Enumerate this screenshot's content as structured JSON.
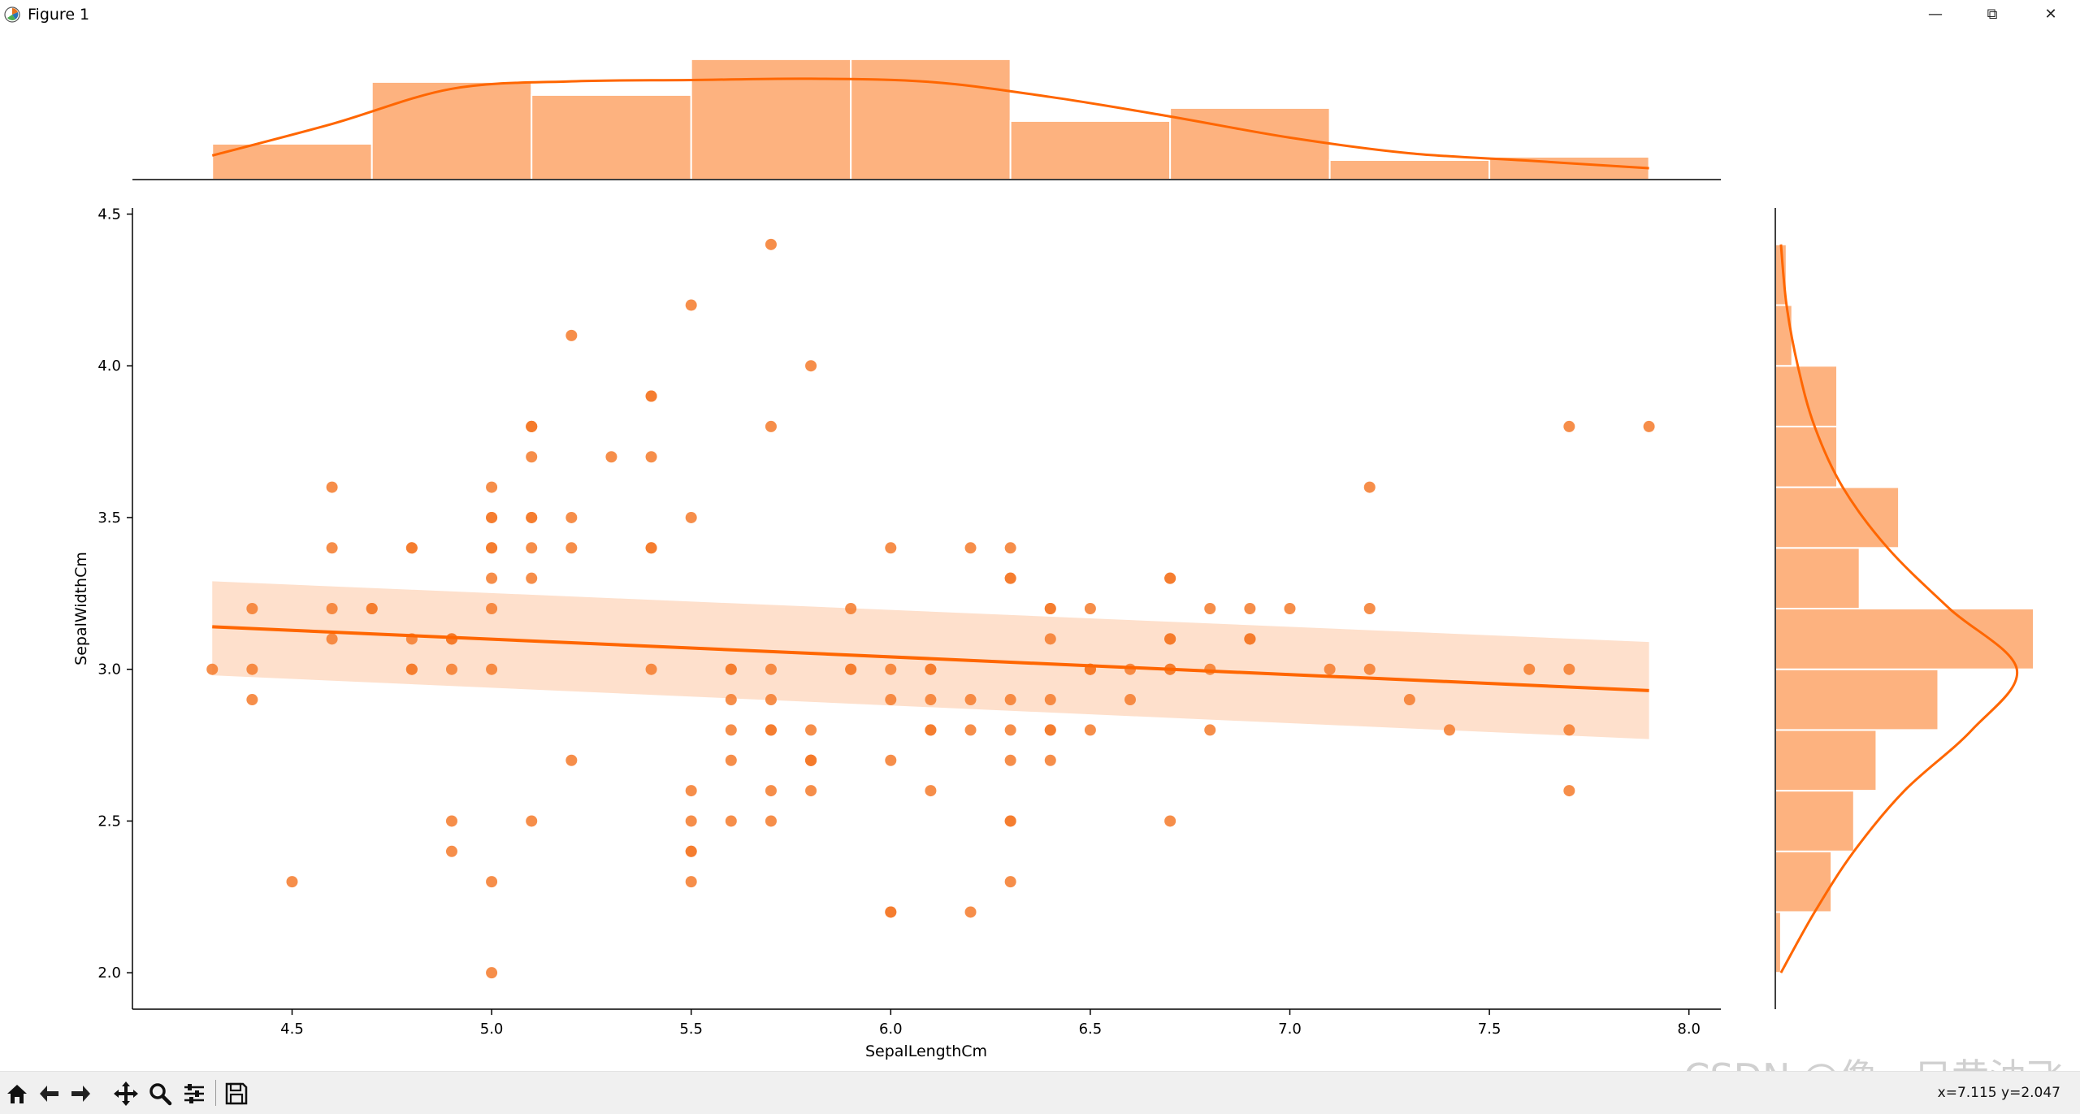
{
  "window": {
    "title": "Figure 1",
    "minimize_glyph": "—",
    "restore_glyph": "⧉",
    "close_glyph": "✕"
  },
  "toolbar": {
    "buttons": [
      {
        "name": "home-icon"
      },
      {
        "name": "back-icon"
      },
      {
        "name": "forward-icon"
      },
      {
        "name": "pan-icon"
      },
      {
        "name": "zoom-icon"
      },
      {
        "name": "configure-subplots-icon"
      },
      {
        "name": "save-icon"
      }
    ],
    "coords_text": "x=7.115  y=2.047"
  },
  "watermark": "CSDN @像一只黄油飞",
  "colors": {
    "accent": "#ff6600",
    "bar_fill": "#fdb27f",
    "ci_band": "#fee0cc",
    "point": "#f57a2a",
    "axis": "#000000"
  },
  "chart_data": {
    "type": "scatter",
    "title": "",
    "xlabel": "SepalLengthCm",
    "ylabel": "SepalWidthCm",
    "xlim": [
      4.1,
      8.08
    ],
    "ylim": [
      1.88,
      4.52
    ],
    "xticks": [
      4.5,
      5.0,
      5.5,
      6.0,
      6.5,
      7.0,
      7.5,
      8.0
    ],
    "xtick_labels": [
      "4.5",
      "5.0",
      "5.5",
      "6.0",
      "6.5",
      "7.0",
      "7.5",
      "8.0"
    ],
    "yticks": [
      2.0,
      2.5,
      3.0,
      3.5,
      4.0,
      4.5
    ],
    "ytick_labels": [
      "2.0",
      "2.5",
      "3.0",
      "3.5",
      "4.0",
      "4.5"
    ],
    "grid": false,
    "points": [
      [
        5.1,
        3.5
      ],
      [
        4.9,
        3.0
      ],
      [
        4.7,
        3.2
      ],
      [
        4.6,
        3.1
      ],
      [
        5.0,
        3.6
      ],
      [
        5.4,
        3.9
      ],
      [
        4.6,
        3.4
      ],
      [
        5.0,
        3.4
      ],
      [
        4.4,
        2.9
      ],
      [
        4.9,
        3.1
      ],
      [
        5.4,
        3.7
      ],
      [
        4.8,
        3.4
      ],
      [
        4.8,
        3.0
      ],
      [
        4.3,
        3.0
      ],
      [
        5.8,
        4.0
      ],
      [
        5.7,
        4.4
      ],
      [
        5.4,
        3.9
      ],
      [
        5.1,
        3.5
      ],
      [
        5.7,
        3.8
      ],
      [
        5.1,
        3.8
      ],
      [
        5.4,
        3.4
      ],
      [
        5.1,
        3.7
      ],
      [
        4.6,
        3.6
      ],
      [
        5.1,
        3.3
      ],
      [
        4.8,
        3.4
      ],
      [
        5.0,
        3.0
      ],
      [
        5.0,
        3.4
      ],
      [
        5.2,
        3.5
      ],
      [
        5.2,
        3.4
      ],
      [
        4.7,
        3.2
      ],
      [
        4.8,
        3.1
      ],
      [
        5.4,
        3.4
      ],
      [
        5.2,
        4.1
      ],
      [
        5.5,
        4.2
      ],
      [
        4.9,
        3.1
      ],
      [
        5.0,
        3.2
      ],
      [
        5.5,
        3.5
      ],
      [
        4.9,
        3.1
      ],
      [
        4.4,
        3.0
      ],
      [
        5.1,
        3.4
      ],
      [
        5.0,
        3.5
      ],
      [
        4.5,
        2.3
      ],
      [
        4.4,
        3.2
      ],
      [
        5.0,
        3.5
      ],
      [
        5.1,
        3.8
      ],
      [
        4.8,
        3.0
      ],
      [
        5.1,
        3.8
      ],
      [
        4.6,
        3.2
      ],
      [
        5.3,
        3.7
      ],
      [
        5.0,
        3.3
      ],
      [
        7.0,
        3.2
      ],
      [
        6.4,
        3.2
      ],
      [
        6.9,
        3.1
      ],
      [
        5.5,
        2.3
      ],
      [
        6.5,
        2.8
      ],
      [
        5.7,
        2.8
      ],
      [
        6.3,
        3.3
      ],
      [
        4.9,
        2.4
      ],
      [
        6.6,
        2.9
      ],
      [
        5.2,
        2.7
      ],
      [
        5.0,
        2.0
      ],
      [
        5.9,
        3.0
      ],
      [
        6.0,
        2.2
      ],
      [
        6.1,
        2.9
      ],
      [
        5.6,
        2.9
      ],
      [
        6.7,
        3.1
      ],
      [
        5.6,
        3.0
      ],
      [
        5.8,
        2.7
      ],
      [
        6.2,
        2.2
      ],
      [
        5.6,
        2.5
      ],
      [
        5.9,
        3.2
      ],
      [
        6.1,
        2.8
      ],
      [
        6.3,
        2.5
      ],
      [
        6.1,
        2.8
      ],
      [
        6.4,
        2.9
      ],
      [
        6.6,
        3.0
      ],
      [
        6.8,
        2.8
      ],
      [
        6.7,
        3.0
      ],
      [
        6.0,
        2.9
      ],
      [
        5.7,
        2.6
      ],
      [
        5.5,
        2.4
      ],
      [
        5.5,
        2.4
      ],
      [
        5.8,
        2.7
      ],
      [
        6.0,
        2.7
      ],
      [
        5.4,
        3.0
      ],
      [
        6.0,
        3.4
      ],
      [
        6.7,
        3.1
      ],
      [
        6.3,
        2.3
      ],
      [
        5.6,
        3.0
      ],
      [
        5.5,
        2.5
      ],
      [
        5.5,
        2.6
      ],
      [
        6.1,
        3.0
      ],
      [
        5.8,
        2.6
      ],
      [
        5.0,
        2.3
      ],
      [
        5.6,
        2.7
      ],
      [
        5.7,
        3.0
      ],
      [
        5.7,
        2.9
      ],
      [
        6.2,
        2.9
      ],
      [
        5.1,
        2.5
      ],
      [
        5.7,
        2.8
      ],
      [
        6.3,
        3.3
      ],
      [
        5.8,
        2.7
      ],
      [
        7.1,
        3.0
      ],
      [
        6.3,
        2.9
      ],
      [
        6.5,
        3.0
      ],
      [
        7.6,
        3.0
      ],
      [
        4.9,
        2.5
      ],
      [
        7.3,
        2.9
      ],
      [
        6.7,
        2.5
      ],
      [
        7.2,
        3.6
      ],
      [
        6.5,
        3.2
      ],
      [
        6.4,
        2.7
      ],
      [
        6.8,
        3.0
      ],
      [
        5.7,
        2.5
      ],
      [
        5.8,
        2.8
      ],
      [
        6.4,
        3.2
      ],
      [
        6.5,
        3.0
      ],
      [
        7.7,
        3.8
      ],
      [
        7.7,
        2.6
      ],
      [
        6.0,
        2.2
      ],
      [
        6.9,
        3.2
      ],
      [
        5.6,
        2.8
      ],
      [
        7.7,
        2.8
      ],
      [
        6.3,
        2.7
      ],
      [
        6.7,
        3.3
      ],
      [
        7.2,
        3.2
      ],
      [
        6.2,
        2.8
      ],
      [
        6.1,
        3.0
      ],
      [
        6.4,
        2.8
      ],
      [
        7.2,
        3.0
      ],
      [
        7.4,
        2.8
      ],
      [
        7.9,
        3.8
      ],
      [
        6.4,
        2.8
      ],
      [
        6.3,
        2.8
      ],
      [
        6.1,
        2.6
      ],
      [
        7.7,
        3.0
      ],
      [
        6.3,
        3.4
      ],
      [
        6.4,
        3.1
      ],
      [
        6.0,
        3.0
      ],
      [
        6.9,
        3.1
      ],
      [
        6.7,
        3.1
      ],
      [
        6.9,
        3.1
      ],
      [
        5.8,
        2.7
      ],
      [
        6.8,
        3.2
      ],
      [
        6.7,
        3.3
      ],
      [
        6.7,
        3.0
      ],
      [
        6.3,
        2.5
      ],
      [
        6.5,
        3.0
      ],
      [
        6.2,
        3.4
      ],
      [
        5.9,
        3.0
      ]
    ],
    "regression": {
      "x": [
        4.3,
        7.9
      ],
      "y": [
        3.14,
        2.93
      ],
      "ci_upper": [
        3.29,
        3.09
      ],
      "ci_lower": [
        2.98,
        2.77
      ]
    },
    "top_hist": {
      "bin_edges": [
        4.3,
        4.7,
        5.1,
        5.5,
        5.9,
        6.3,
        6.7,
        7.1,
        7.5,
        7.9
      ],
      "counts": [
        11,
        30,
        26,
        37,
        37,
        18,
        22,
        6,
        7
      ],
      "kde_x": [
        4.3,
        4.6,
        4.9,
        5.2,
        5.5,
        5.8,
        6.1,
        6.4,
        6.7,
        7.0,
        7.3,
        7.6,
        7.9
      ],
      "kde_y": [
        7.4,
        17.1,
        27.9,
        30.2,
        30.6,
        31.0,
        30.0,
        25.4,
        19.4,
        12.9,
        8.1,
        5.8,
        3.5
      ]
    },
    "right_hist": {
      "bin_edges": [
        2.0,
        2.2,
        2.4,
        2.6,
        2.8,
        3.0,
        3.2,
        3.4,
        3.6,
        3.8,
        4.0,
        4.2,
        4.4
      ],
      "counts": [
        1,
        10,
        14,
        18,
        29,
        46,
        15,
        22,
        11,
        11,
        3,
        2
      ],
      "kde_y": [
        2.0,
        2.2,
        2.4,
        2.6,
        2.8,
        3.0,
        3.2,
        3.4,
        3.6,
        3.8,
        4.0,
        4.2,
        4.4
      ],
      "kde_x": [
        1,
        7,
        14,
        23,
        35,
        43,
        31,
        20,
        12,
        7,
        4,
        2,
        1
      ]
    }
  }
}
